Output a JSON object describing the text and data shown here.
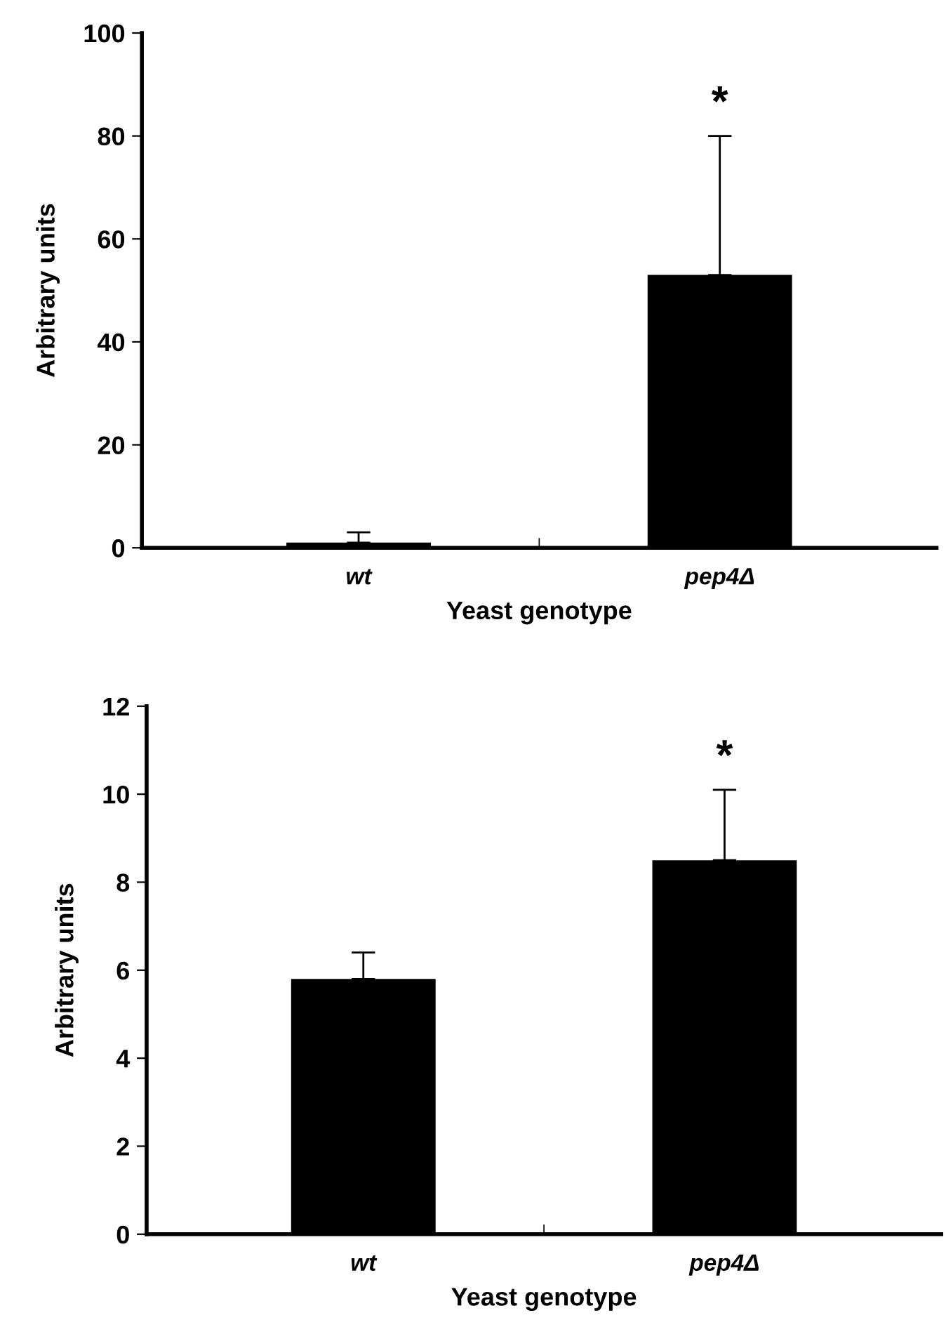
{
  "chart_data": [
    {
      "type": "bar",
      "categories": [
        "wt",
        "pep4Δ"
      ],
      "values": [
        1,
        53
      ],
      "errors": [
        [
          1,
          3
        ],
        [
          53,
          80
        ]
      ],
      "color": "#000000",
      "xlabel": "Yeast genotype",
      "ylabel": "Arbitrary units",
      "ylim": [
        0,
        100
      ],
      "yticks": [
        0,
        20,
        40,
        60,
        80,
        100
      ],
      "grid": false,
      "legend": false,
      "annotations": [
        "*"
      ]
    },
    {
      "type": "bar",
      "categories": [
        "wt",
        "pep4Δ"
      ],
      "values": [
        5.8,
        8.5
      ],
      "errors": [
        [
          5.8,
          6.4
        ],
        [
          8.5,
          10.1
        ]
      ],
      "color": "#000000",
      "xlabel": "Yeast genotype",
      "ylabel": "Arbitrary units",
      "ylim": [
        0,
        12
      ],
      "yticks": [
        0,
        2,
        4,
        6,
        8,
        10,
        12
      ],
      "grid": false,
      "legend": false,
      "annotations": [
        "*"
      ]
    }
  ]
}
